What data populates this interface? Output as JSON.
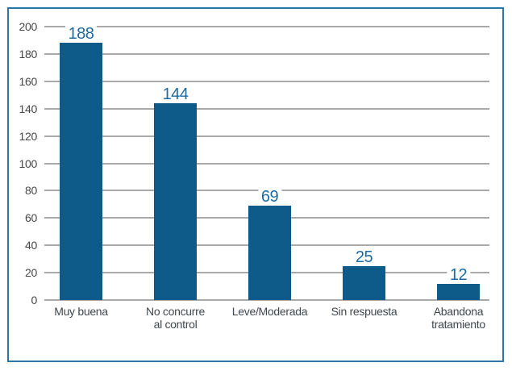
{
  "chart_data": {
    "type": "bar",
    "categories": [
      "Muy buena",
      "No concurre\nal control",
      "Leve/Moderada",
      "Sin respuesta",
      "Abandona\ntratamiento"
    ],
    "values": [
      188,
      144,
      69,
      25,
      12
    ],
    "title": "",
    "xlabel": "",
    "ylabel": "",
    "ylim": [
      0,
      200
    ],
    "yticks": [
      0,
      20,
      40,
      60,
      80,
      100,
      120,
      140,
      160,
      180,
      200
    ],
    "grid": true,
    "legend": false,
    "colors": {
      "bar_fill": "#0e5a88",
      "value_label": "#1d6ba3",
      "y_tick_label": "#474747",
      "x_category_label": "#40484f",
      "gridline": "#a9a9a9",
      "frame_border": "#2e74a5",
      "background": "#ffffff"
    }
  }
}
